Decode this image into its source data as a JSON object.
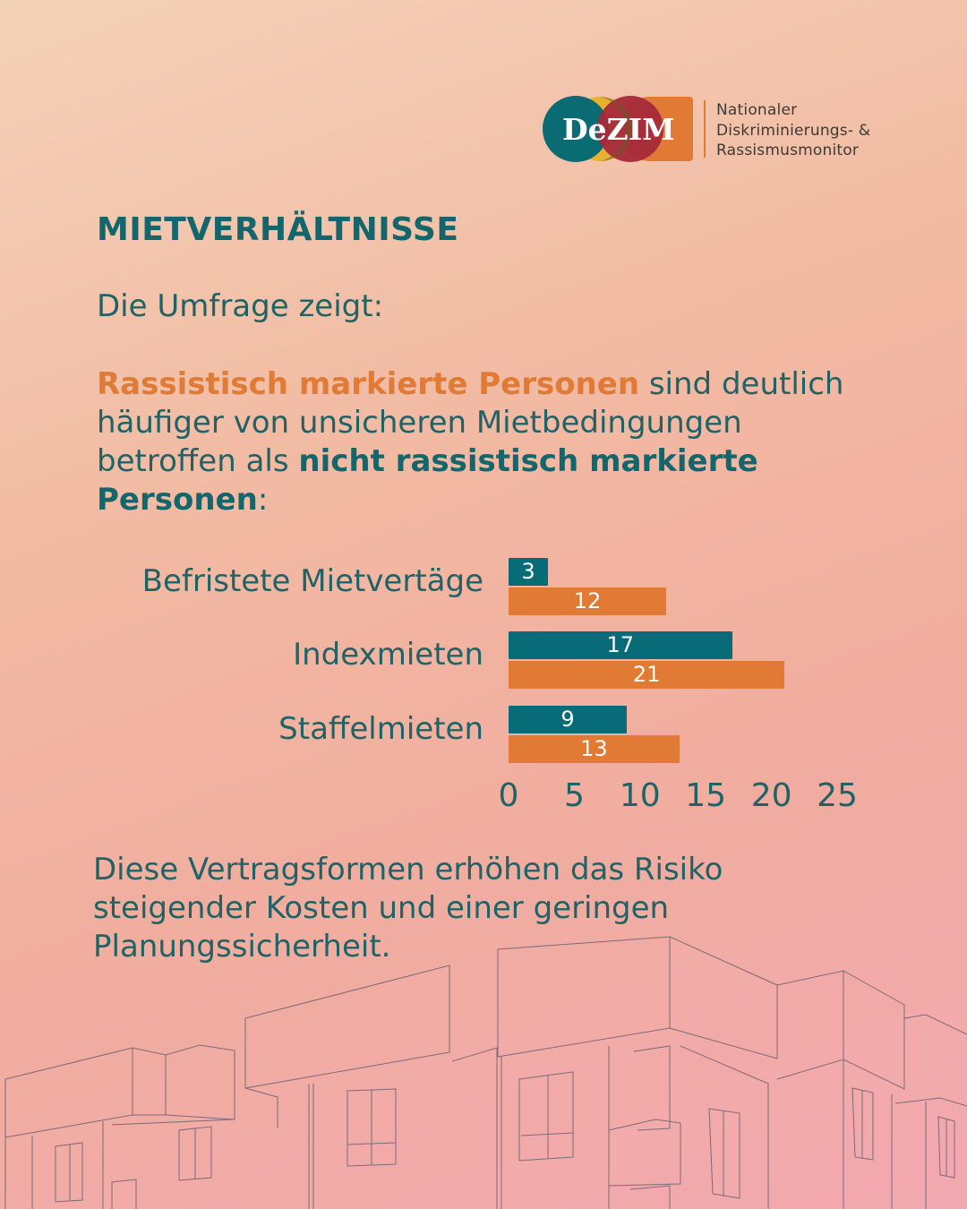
{
  "logo": {
    "wordmark": "DeZIM",
    "lines": [
      "Nationaler",
      "Diskriminierungs- &",
      "Rassismusmonitor"
    ],
    "colors": [
      "#0b6b73",
      "#e8b231",
      "#a52a3a",
      "#e07a35"
    ]
  },
  "title": "MIETVERHÄLTNISSE",
  "intro": "Die Umfrage zeigt:",
  "paragraph": {
    "highlight_orange": "Rassistisch markierte Personen",
    "text_1": " sind deutlich häufiger von unsicheren Mietbedingungen betroffen als ",
    "highlight_bold": "nicht rassistisch markierte Personen",
    "text_2": ":"
  },
  "outro": "Diese Vertragsformen erhöhen das Risiko steigender Kosten und einer geringen Planungssicherheit.",
  "colors": {
    "teal": "#086b78",
    "orange": "#e07a35",
    "text": "#1f6366"
  },
  "chart_data": {
    "type": "bar",
    "orientation": "horizontal",
    "categories": [
      "Befristete Mietvertäge",
      "Indexmieten",
      "Staffelmieten"
    ],
    "series": [
      {
        "name": "nicht rassistisch markierte Personen",
        "color": "#086b78",
        "values": [
          3,
          17,
          9
        ]
      },
      {
        "name": "Rassistisch markierte Personen",
        "color": "#e07a35",
        "values": [
          12,
          21,
          13
        ]
      }
    ],
    "xticks": [
      "0",
      "5",
      "10",
      "15",
      "20",
      "25"
    ],
    "xlim": [
      0,
      25
    ],
    "title": "",
    "xlabel": "",
    "ylabel": "",
    "grid": false,
    "legend": "none",
    "data_labels": true
  }
}
